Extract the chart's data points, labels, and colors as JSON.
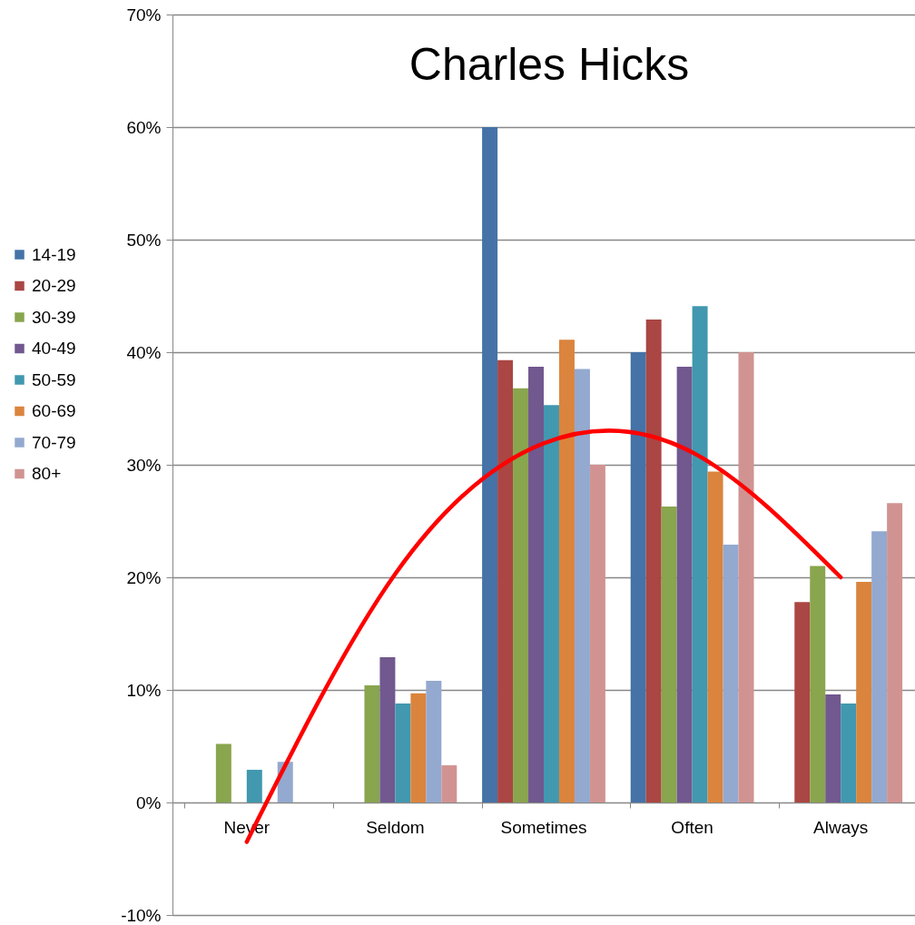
{
  "chart_data": {
    "type": "bar",
    "title": "Charles Hicks",
    "categories": [
      "Never",
      "Seldom",
      "Sometimes",
      "Often",
      "Always"
    ],
    "series": [
      {
        "name": "14-19",
        "color": "#4572a7",
        "values": [
          0,
          0,
          60,
          40,
          0
        ]
      },
      {
        "name": "20-29",
        "color": "#aa4643",
        "values": [
          0,
          0,
          39.3,
          42.9,
          17.8
        ]
      },
      {
        "name": "30-39",
        "color": "#89a54e",
        "values": [
          5.2,
          10.4,
          36.8,
          26.3,
          21.0
        ]
      },
      {
        "name": "40-49",
        "color": "#71588f",
        "values": [
          0,
          12.9,
          38.7,
          38.7,
          9.6
        ]
      },
      {
        "name": "50-59",
        "color": "#4198af",
        "values": [
          2.9,
          8.8,
          35.3,
          44.1,
          8.8
        ]
      },
      {
        "name": "60-69",
        "color": "#db843d",
        "values": [
          0,
          9.7,
          41.1,
          29.4,
          19.6
        ]
      },
      {
        "name": "70-79",
        "color": "#93a9cf",
        "values": [
          3.6,
          10.8,
          38.5,
          22.9,
          24.1
        ]
      },
      {
        "name": "80+",
        "color": "#d19392",
        "values": [
          0,
          3.3,
          30,
          40,
          26.6
        ]
      },
      {
        "type": "line",
        "color": "#ff0000",
        "values": [
          -3.5,
          20.3,
          31.9,
          31.1,
          20.0
        ]
      }
    ],
    "ylim": [
      -10,
      70
    ],
    "yticks": [
      {
        "value": -10,
        "label": "-10%"
      },
      {
        "value": 0,
        "label": "0%"
      },
      {
        "value": 10,
        "label": "10%"
      },
      {
        "value": 20,
        "label": "20%"
      },
      {
        "value": 30,
        "label": "30%"
      },
      {
        "value": 40,
        "label": "40%"
      },
      {
        "value": 50,
        "label": "50%"
      },
      {
        "value": 60,
        "label": "60%"
      },
      {
        "value": 70,
        "label": "70%"
      }
    ],
    "grid": "y",
    "legend": "left"
  }
}
